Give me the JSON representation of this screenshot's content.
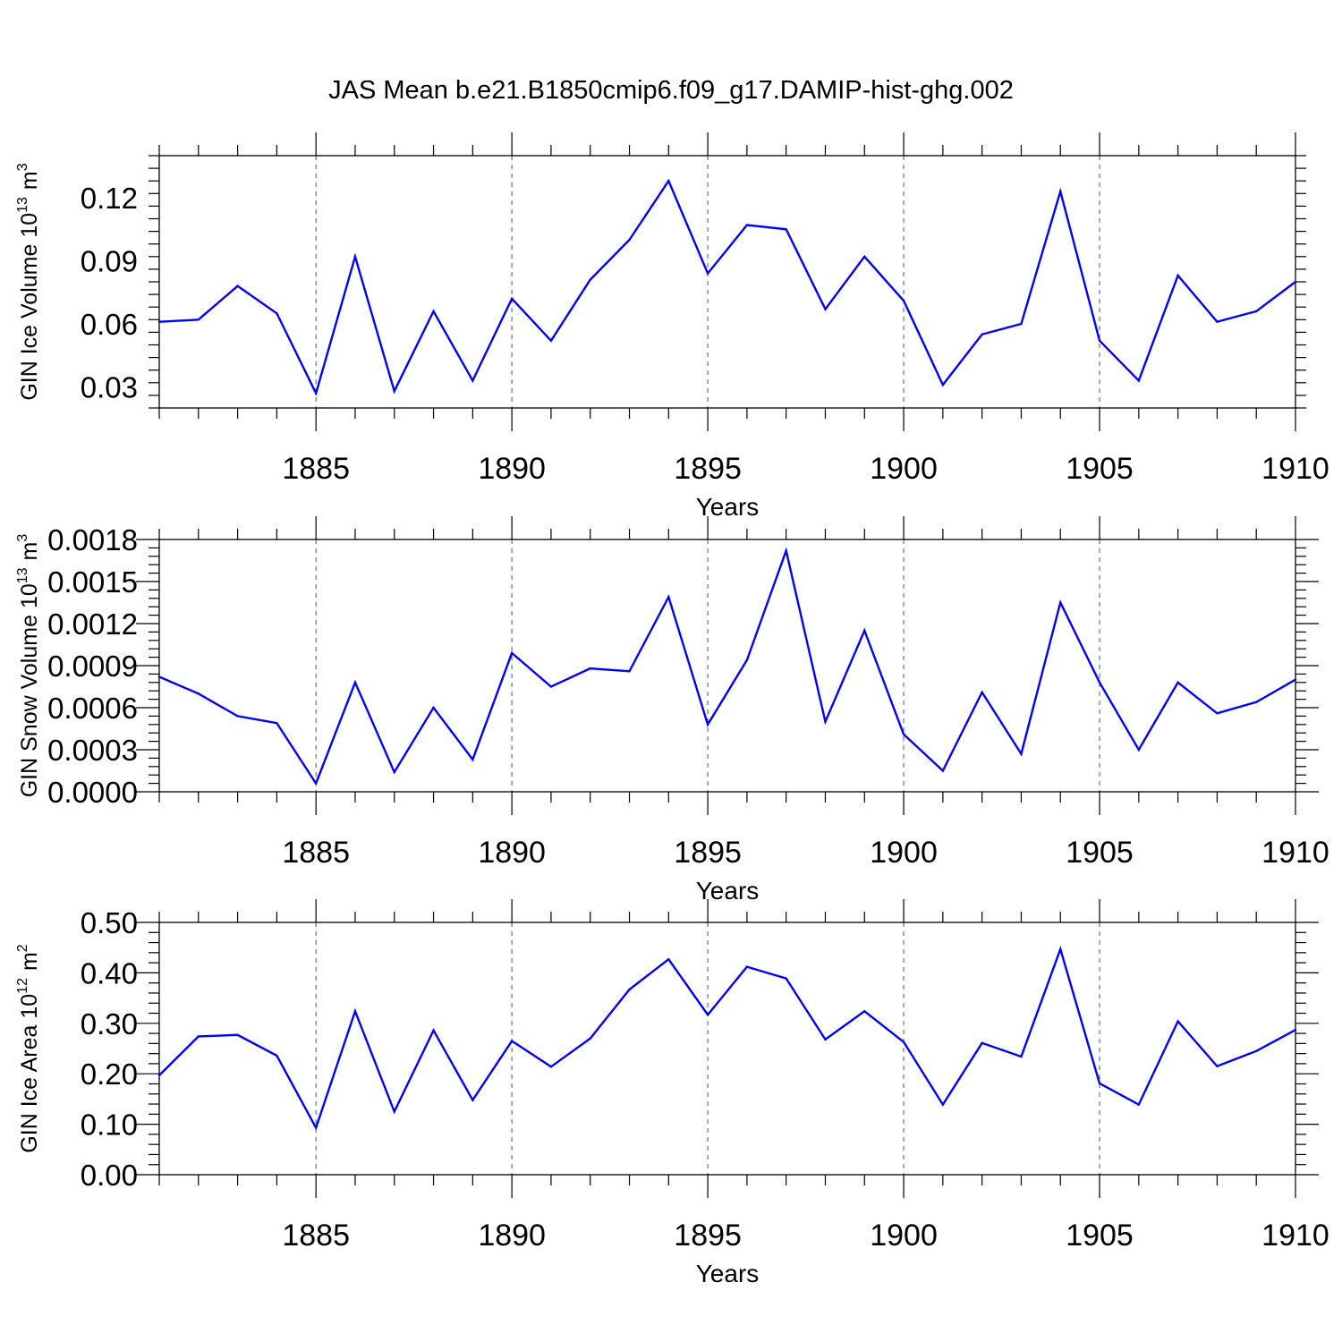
{
  "colors": {
    "series": "#0000ff",
    "axis": "#000000",
    "grid": "#555555",
    "background": "#ffffff"
  },
  "chart_data": {
    "type": "line",
    "title": "JAS Mean b.e21.B1850cmip6.f09_g17.DAMIP-hist-ghg.002",
    "panels": [
      {
        "ylabel": {
          "main": "GIN Ice Volume 10",
          "exp": "13",
          "unit": "m",
          "unit_exp": "3"
        },
        "xlabel": "Years",
        "xlim": [
          1881,
          1910
        ],
        "ylim": [
          0.02,
          0.14
        ],
        "yticks": [
          0.03,
          0.06,
          0.09,
          0.12
        ],
        "ytick_labels": [
          "0.03",
          "0.06",
          "0.09",
          "0.12"
        ],
        "xticks": [
          1885,
          1890,
          1895,
          1900,
          1905,
          1910
        ],
        "xtick_labels": [
          "1885",
          "1890",
          "1895",
          "1900",
          "1905",
          "1910"
        ],
        "grid": "vertical dashed at major x ticks",
        "x": [
          1881,
          1882,
          1883,
          1884,
          1885,
          1886,
          1887,
          1888,
          1889,
          1890,
          1891,
          1892,
          1893,
          1894,
          1895,
          1896,
          1897,
          1898,
          1899,
          1900,
          1901,
          1902,
          1903,
          1904,
          1905,
          1906,
          1907,
          1908,
          1909,
          1910
        ],
        "values": [
          0.061,
          0.062,
          0.078,
          0.065,
          0.027,
          0.092,
          0.028,
          0.066,
          0.033,
          0.072,
          0.052,
          0.081,
          0.1,
          0.128,
          0.084,
          0.107,
          0.105,
          0.067,
          0.092,
          0.071,
          0.031,
          0.055,
          0.06,
          0.123,
          0.052,
          0.033,
          0.083,
          0.061,
          0.066,
          0.08
        ]
      },
      {
        "ylabel": {
          "main": "GIN Snow Volume 10",
          "exp": "13",
          "unit": "m",
          "unit_exp": "3"
        },
        "xlabel": "Years",
        "xlim": [
          1881,
          1910
        ],
        "ylim": [
          0.0,
          0.0018
        ],
        "yticks": [
          0.0,
          0.0003,
          0.0006,
          0.0009,
          0.0012,
          0.0015,
          0.0018
        ],
        "ytick_labels": [
          "0.0000",
          "0.0003",
          "0.0006",
          "0.0009",
          "0.0012",
          "0.0015",
          "0.0018"
        ],
        "xticks": [
          1885,
          1890,
          1895,
          1900,
          1905,
          1910
        ],
        "xtick_labels": [
          "1885",
          "1890",
          "1895",
          "1900",
          "1905",
          "1910"
        ],
        "grid": "vertical dashed at major x ticks",
        "x": [
          1881,
          1882,
          1883,
          1884,
          1885,
          1886,
          1887,
          1888,
          1889,
          1890,
          1891,
          1892,
          1893,
          1894,
          1895,
          1896,
          1897,
          1898,
          1899,
          1900,
          1901,
          1902,
          1903,
          1904,
          1905,
          1906,
          1907,
          1908,
          1909,
          1910
        ],
        "values": [
          0.00082,
          0.0007,
          0.00054,
          0.00049,
          6e-05,
          0.00078,
          0.00014,
          0.0006,
          0.00023,
          0.00099,
          0.00075,
          0.00088,
          0.00086,
          0.00139,
          0.00048,
          0.00094,
          0.00172,
          0.0005,
          0.00115,
          0.00041,
          0.00015,
          0.00071,
          0.00027,
          0.00135,
          0.00078,
          0.0003,
          0.00078,
          0.00056,
          0.00064,
          0.0008
        ]
      },
      {
        "ylabel": {
          "main": "GIN Ice Area 10",
          "exp": "12",
          "unit": "m",
          "unit_exp": "2"
        },
        "xlabel": "Years",
        "xlim": [
          1881,
          1910
        ],
        "ylim": [
          0.0,
          0.5
        ],
        "yticks": [
          0.0,
          0.1,
          0.2,
          0.3,
          0.4,
          0.5
        ],
        "ytick_labels": [
          "0.00",
          "0.10",
          "0.20",
          "0.30",
          "0.40",
          "0.50"
        ],
        "xticks": [
          1885,
          1890,
          1895,
          1900,
          1905,
          1910
        ],
        "xtick_labels": [
          "1885",
          "1890",
          "1895",
          "1900",
          "1905",
          "1910"
        ],
        "grid": "vertical dashed at major x ticks",
        "x": [
          1881,
          1882,
          1883,
          1884,
          1885,
          1886,
          1887,
          1888,
          1889,
          1890,
          1891,
          1892,
          1893,
          1894,
          1895,
          1896,
          1897,
          1898,
          1899,
          1900,
          1901,
          1902,
          1903,
          1904,
          1905,
          1906,
          1907,
          1908,
          1909,
          1910
        ],
        "values": [
          0.197,
          0.274,
          0.277,
          0.236,
          0.093,
          0.324,
          0.125,
          0.286,
          0.148,
          0.265,
          0.214,
          0.27,
          0.367,
          0.427,
          0.317,
          0.412,
          0.389,
          0.268,
          0.324,
          0.263,
          0.139,
          0.261,
          0.234,
          0.447,
          0.181,
          0.139,
          0.304,
          0.215,
          0.245,
          0.287
        ]
      }
    ]
  }
}
